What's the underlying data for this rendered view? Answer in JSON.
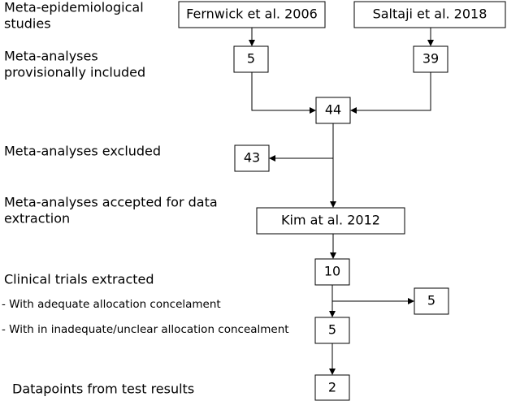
{
  "labels": [
    {
      "lines": [
        "Meta-epidemiological",
        "studies"
      ]
    },
    {
      "lines": [
        "Meta-analyses",
        "provisionally included"
      ]
    },
    {
      "lines": [
        "Meta-analyses excluded"
      ]
    },
    {
      "lines": [
        "Meta-analyses accepted for data",
        "extraction"
      ]
    },
    {
      "lines": [
        "Clinical trials extracted"
      ]
    },
    {
      "lines": [
        "- With adequate allocation concelament"
      ]
    },
    {
      "lines": [
        "- With in inadequate/unclear allocation concealment"
      ]
    },
    {
      "lines": [
        "Datapoints from test results"
      ]
    }
  ],
  "nodes": [
    {
      "label": "Fernwick et al. 2006"
    },
    {
      "label": "Saltaji et al. 2018"
    },
    {
      "label": "5"
    },
    {
      "label": "39"
    },
    {
      "label": "44"
    },
    {
      "label": "43"
    },
    {
      "label": "Kim at al. 2012"
    },
    {
      "label": "10"
    },
    {
      "label": "5"
    },
    {
      "label": "5"
    },
    {
      "label": "2"
    }
  ]
}
